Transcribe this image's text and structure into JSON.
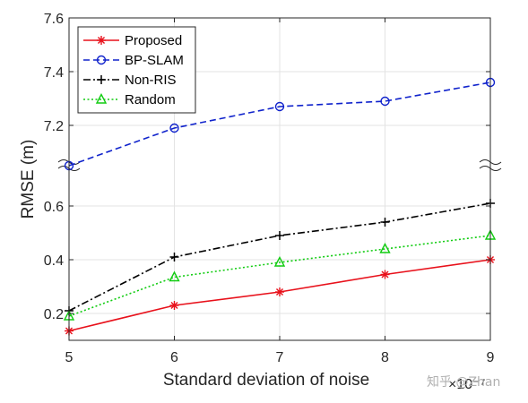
{
  "chart_data": {
    "type": "line",
    "xlabel": "Standard deviation of noise",
    "ylabel": "RMSE (m)",
    "x": [
      5,
      6,
      7,
      8,
      9
    ],
    "x_ticks": [
      "5",
      "6",
      "7",
      "8",
      "9"
    ],
    "x_exponent": "×10⁻⁷",
    "y_axis_broken": true,
    "y_ranges": {
      "lower": [
        0.1,
        0.7
      ],
      "upper": [
        7.0,
        7.6
      ]
    },
    "y_ticks_lower": [
      "0.2",
      "0.4",
      "0.6"
    ],
    "y_ticks_upper": [
      "7.2",
      "7.4",
      "7.6"
    ],
    "grid": true,
    "legend_position": "top-left",
    "series": [
      {
        "name": "Proposed",
        "color": "#e8111b",
        "dash": "solid",
        "marker": "asterisk",
        "values": [
          0.135,
          0.23,
          0.28,
          0.345,
          0.4
        ]
      },
      {
        "name": "BP-SLAM",
        "color": "#1023cc",
        "dash": "dashed",
        "marker": "circle",
        "values": [
          7.05,
          7.19,
          7.27,
          7.29,
          7.36
        ]
      },
      {
        "name": "Non-RIS",
        "color": "#000000",
        "dash": "dashdot",
        "marker": "plus",
        "values": [
          0.21,
          0.41,
          0.49,
          0.54,
          0.61
        ]
      },
      {
        "name": "Random",
        "color": "#11cc11",
        "dash": "dotted",
        "marker": "triangle",
        "values": [
          0.19,
          0.335,
          0.39,
          0.44,
          0.49
        ]
      }
    ]
  },
  "watermark": "知乎 @Zhan"
}
